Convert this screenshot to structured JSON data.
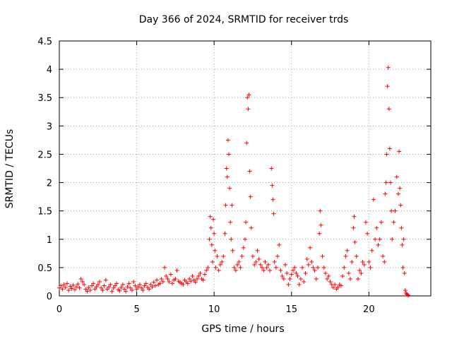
{
  "chart_data": {
    "type": "scatter",
    "title": "Day 366 of 2024, SRMTID for receiver trds",
    "xlabel": "GPS time / hours",
    "ylabel": "SRMTID / TECUs",
    "xlim": [
      0,
      24
    ],
    "ylim": [
      0,
      4.5
    ],
    "xticks": [
      0,
      5,
      10,
      15,
      20
    ],
    "xtick_labels": [
      "0",
      "5",
      "10",
      "15",
      "20"
    ],
    "yticks": [
      0,
      0.5,
      1,
      1.5,
      2,
      2.5,
      3,
      3.5,
      4,
      4.5
    ],
    "ytick_labels": [
      "0",
      "0.5",
      "1",
      "1.5",
      "2",
      "2.5",
      "3",
      "3.5",
      "4",
      "4.5"
    ],
    "grid": true,
    "marker": "+",
    "color": "#ff0000",
    "series": [
      {
        "name": "SRMTID",
        "points": [
          [
            0.0,
            0.14
          ],
          [
            0.1,
            0.18
          ],
          [
            0.2,
            0.12
          ],
          [
            0.3,
            0.2
          ],
          [
            0.4,
            0.15
          ],
          [
            0.5,
            0.22
          ],
          [
            0.6,
            0.1
          ],
          [
            0.7,
            0.17
          ],
          [
            0.8,
            0.13
          ],
          [
            0.9,
            0.19
          ],
          [
            1.0,
            0.11
          ],
          [
            1.1,
            0.16
          ],
          [
            1.2,
            0.21
          ],
          [
            1.3,
            0.14
          ],
          [
            1.4,
            0.3
          ],
          [
            1.5,
            0.25
          ],
          [
            1.6,
            0.2
          ],
          [
            1.7,
            0.12
          ],
          [
            1.8,
            0.08
          ],
          [
            1.9,
            0.15
          ],
          [
            2.0,
            0.1
          ],
          [
            2.1,
            0.18
          ],
          [
            2.2,
            0.22
          ],
          [
            2.3,
            0.12
          ],
          [
            2.4,
            0.16
          ],
          [
            2.5,
            0.2
          ],
          [
            2.6,
            0.25
          ],
          [
            2.7,
            0.14
          ],
          [
            2.8,
            0.1
          ],
          [
            2.9,
            0.18
          ],
          [
            3.0,
            0.28
          ],
          [
            3.1,
            0.12
          ],
          [
            3.2,
            0.16
          ],
          [
            3.3,
            0.2
          ],
          [
            3.4,
            0.08
          ],
          [
            3.5,
            0.14
          ],
          [
            3.6,
            0.18
          ],
          [
            3.7,
            0.22
          ],
          [
            3.8,
            0.11
          ],
          [
            3.9,
            0.09
          ],
          [
            4.0,
            0.15
          ],
          [
            4.1,
            0.2
          ],
          [
            4.2,
            0.12
          ],
          [
            4.3,
            0.08
          ],
          [
            4.4,
            0.16
          ],
          [
            4.5,
            0.22
          ],
          [
            4.6,
            0.14
          ],
          [
            4.7,
            0.1
          ],
          [
            4.8,
            0.25
          ],
          [
            4.9,
            0.18
          ],
          [
            5.0,
            0.12
          ],
          [
            5.1,
            0.16
          ],
          [
            5.2,
            0.2
          ],
          [
            5.3,
            0.14
          ],
          [
            5.4,
            0.1
          ],
          [
            5.5,
            0.18
          ],
          [
            5.6,
            0.22
          ],
          [
            5.7,
            0.15
          ],
          [
            5.8,
            0.12
          ],
          [
            5.9,
            0.2
          ],
          [
            6.0,
            0.16
          ],
          [
            6.1,
            0.24
          ],
          [
            6.2,
            0.18
          ],
          [
            6.3,
            0.28
          ],
          [
            6.4,
            0.2
          ],
          [
            6.5,
            0.22
          ],
          [
            6.6,
            0.3
          ],
          [
            6.7,
            0.25
          ],
          [
            6.8,
            0.5
          ],
          [
            6.9,
            0.35
          ],
          [
            7.0,
            0.3
          ],
          [
            7.1,
            0.25
          ],
          [
            7.2,
            0.38
          ],
          [
            7.3,
            0.22
          ],
          [
            7.4,
            0.28
          ],
          [
            7.5,
            0.3
          ],
          [
            7.6,
            0.45
          ],
          [
            7.7,
            0.26
          ],
          [
            7.8,
            0.24
          ],
          [
            7.9,
            0.22
          ],
          [
            8.0,
            0.2
          ],
          [
            8.1,
            0.28
          ],
          [
            8.2,
            0.25
          ],
          [
            8.3,
            0.22
          ],
          [
            8.4,
            0.3
          ],
          [
            8.5,
            0.26
          ],
          [
            8.6,
            0.35
          ],
          [
            8.7,
            0.28
          ],
          [
            8.8,
            0.24
          ],
          [
            8.9,
            0.3
          ],
          [
            9.0,
            0.35
          ],
          [
            9.1,
            0.4
          ],
          [
            9.2,
            0.3
          ],
          [
            9.3,
            0.28
          ],
          [
            9.4,
            0.38
          ],
          [
            9.5,
            0.45
          ],
          [
            9.6,
            0.5
          ],
          [
            9.7,
            1.0
          ],
          [
            9.75,
            1.4
          ],
          [
            9.8,
            1.2
          ],
          [
            9.85,
            0.9
          ],
          [
            9.9,
            0.6
          ],
          [
            9.95,
            1.35
          ],
          [
            10.0,
            1.1
          ],
          [
            10.05,
            0.8
          ],
          [
            10.1,
            0.5
          ],
          [
            10.2,
            0.7
          ],
          [
            10.3,
            0.45
          ],
          [
            10.4,
            0.55
          ],
          [
            10.5,
            0.6
          ],
          [
            10.6,
            0.7
          ],
          [
            10.7,
            1.1
          ],
          [
            10.75,
            1.6
          ],
          [
            10.8,
            2.25
          ],
          [
            10.85,
            2.1
          ],
          [
            10.9,
            2.75
          ],
          [
            10.95,
            2.5
          ],
          [
            11.0,
            1.9
          ],
          [
            11.05,
            1.3
          ],
          [
            11.1,
            1.0
          ],
          [
            11.15,
            1.6
          ],
          [
            11.2,
            0.8
          ],
          [
            11.3,
            0.5
          ],
          [
            11.4,
            0.45
          ],
          [
            11.5,
            0.55
          ],
          [
            11.6,
            0.6
          ],
          [
            11.7,
            0.5
          ],
          [
            11.8,
            0.7
          ],
          [
            11.9,
            0.85
          ],
          [
            12.0,
            1.0
          ],
          [
            12.05,
            1.3
          ],
          [
            12.1,
            2.7
          ],
          [
            12.15,
            3.5
          ],
          [
            12.2,
            3.3
          ],
          [
            12.25,
            3.55
          ],
          [
            12.3,
            2.2
          ],
          [
            12.35,
            1.75
          ],
          [
            12.4,
            1.2
          ],
          [
            12.5,
            0.7
          ],
          [
            12.6,
            0.55
          ],
          [
            12.7,
            0.6
          ],
          [
            12.8,
            0.8
          ],
          [
            12.9,
            0.65
          ],
          [
            13.0,
            0.55
          ],
          [
            13.1,
            0.5
          ],
          [
            13.2,
            0.45
          ],
          [
            13.3,
            0.6
          ],
          [
            13.4,
            0.5
          ],
          [
            13.5,
            0.55
          ],
          [
            13.6,
            0.45
          ],
          [
            13.7,
            2.25
          ],
          [
            13.75,
            1.95
          ],
          [
            13.8,
            1.7
          ],
          [
            13.85,
            1.45
          ],
          [
            13.9,
            0.6
          ],
          [
            14.0,
            0.5
          ],
          [
            14.1,
            0.7
          ],
          [
            14.2,
            0.9
          ],
          [
            14.3,
            0.45
          ],
          [
            14.4,
            0.35
          ],
          [
            14.5,
            0.3
          ],
          [
            14.6,
            0.55
          ],
          [
            14.7,
            0.4
          ],
          [
            14.8,
            0.2
          ],
          [
            14.9,
            0.3
          ],
          [
            15.0,
            0.38
          ],
          [
            15.1,
            0.45
          ],
          [
            15.2,
            0.5
          ],
          [
            15.3,
            0.4
          ],
          [
            15.4,
            0.35
          ],
          [
            15.5,
            0.2
          ],
          [
            15.6,
            0.3
          ],
          [
            15.7,
            0.5
          ],
          [
            15.8,
            0.25
          ],
          [
            15.9,
            0.4
          ],
          [
            16.0,
            0.65
          ],
          [
            16.1,
            0.55
          ],
          [
            16.2,
            0.85
          ],
          [
            16.3,
            0.6
          ],
          [
            16.4,
            0.5
          ],
          [
            16.5,
            0.45
          ],
          [
            16.6,
            0.3
          ],
          [
            16.7,
            0.5
          ],
          [
            16.8,
            1.1
          ],
          [
            16.85,
            1.5
          ],
          [
            16.9,
            1.25
          ],
          [
            17.0,
            0.7
          ],
          [
            17.1,
            0.5
          ],
          [
            17.2,
            0.4
          ],
          [
            17.3,
            0.3
          ],
          [
            17.4,
            0.35
          ],
          [
            17.5,
            0.25
          ],
          [
            17.6,
            0.2
          ],
          [
            17.7,
            0.15
          ],
          [
            17.8,
            0.2
          ],
          [
            17.9,
            0.12
          ],
          [
            18.0,
            0.15
          ],
          [
            18.1,
            0.2
          ],
          [
            18.2,
            0.18
          ],
          [
            18.3,
            0.35
          ],
          [
            18.4,
            0.5
          ],
          [
            18.5,
            0.7
          ],
          [
            18.6,
            0.8
          ],
          [
            18.7,
            0.4
          ],
          [
            18.8,
            0.3
          ],
          [
            18.9,
            0.6
          ],
          [
            19.0,
            1.2
          ],
          [
            19.05,
            1.4
          ],
          [
            19.1,
            0.95
          ],
          [
            19.2,
            0.7
          ],
          [
            19.3,
            0.3
          ],
          [
            19.4,
            0.45
          ],
          [
            19.5,
            0.4
          ],
          [
            19.6,
            0.6
          ],
          [
            19.7,
            0.55
          ],
          [
            19.8,
            1.3
          ],
          [
            19.9,
            1.1
          ],
          [
            20.0,
            0.6
          ],
          [
            20.1,
            0.5
          ],
          [
            20.2,
            0.8
          ],
          [
            20.3,
            1.7
          ],
          [
            20.4,
            1.0
          ],
          [
            20.5,
            1.2
          ],
          [
            20.6,
            0.9
          ],
          [
            20.7,
            1.0
          ],
          [
            20.8,
            1.3
          ],
          [
            20.9,
            0.7
          ],
          [
            21.0,
            0.6
          ],
          [
            21.05,
            1.8
          ],
          [
            21.1,
            2.0
          ],
          [
            21.15,
            2.5
          ],
          [
            21.2,
            3.7
          ],
          [
            21.25,
            4.03
          ],
          [
            21.3,
            3.3
          ],
          [
            21.35,
            2.6
          ],
          [
            21.4,
            2.0
          ],
          [
            21.45,
            1.5
          ],
          [
            21.5,
            1.0
          ],
          [
            21.6,
            1.3
          ],
          [
            21.7,
            1.5
          ],
          [
            21.8,
            2.1
          ],
          [
            21.9,
            1.8
          ],
          [
            21.95,
            2.55
          ],
          [
            22.0,
            1.9
          ],
          [
            22.05,
            1.6
          ],
          [
            22.1,
            1.2
          ],
          [
            22.15,
            0.9
          ],
          [
            22.2,
            0.5
          ],
          [
            22.25,
            1.0
          ],
          [
            22.3,
            0.4
          ],
          [
            22.35,
            0.1
          ],
          [
            22.4,
            0.05
          ],
          [
            22.45,
            0.03
          ],
          [
            22.5,
            0.02
          ],
          [
            22.55,
            0.01
          ]
        ]
      }
    ]
  }
}
